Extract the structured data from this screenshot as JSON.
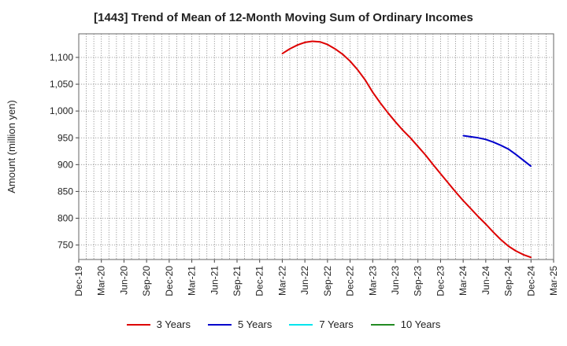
{
  "chart_data": {
    "type": "line",
    "title": "[1443]  Trend of Mean of 12-Month Moving Sum of Ordinary Incomes",
    "xlabel": "",
    "ylabel": "Amount (million yen)",
    "x_tick_labels": [
      "Dec-19",
      "Mar-20",
      "Jun-20",
      "Sep-20",
      "Dec-20",
      "Mar-21",
      "Jun-21",
      "Sep-21",
      "Dec-21",
      "Mar-22",
      "Jun-22",
      "Sep-22",
      "Dec-22",
      "Mar-23",
      "Jun-23",
      "Sep-23",
      "Dec-23",
      "Mar-24",
      "Jun-24",
      "Sep-24",
      "Dec-24",
      "Mar-25"
    ],
    "y_ticks": [
      750,
      800,
      850,
      900,
      950,
      1000,
      1050,
      1100
    ],
    "y_tick_labels": [
      "750",
      "800",
      "850",
      "900",
      "950",
      "1,000",
      "1,050",
      "1,100"
    ],
    "ylim": [
      723,
      1144
    ],
    "grid": true,
    "legend_position": "bottom",
    "series": [
      {
        "name": "3 Years",
        "color": "#dd0000",
        "points": [
          [
            "Mar-22",
            1107
          ],
          [
            "Apr-22",
            1116
          ],
          [
            "May-22",
            1123
          ],
          [
            "Jun-22",
            1128
          ],
          [
            "Jul-22",
            1130
          ],
          [
            "Aug-22",
            1129
          ],
          [
            "Sep-22",
            1124
          ],
          [
            "Oct-22",
            1116
          ],
          [
            "Nov-22",
            1106
          ],
          [
            "Dec-22",
            1093
          ],
          [
            "Jan-23",
            1077
          ],
          [
            "Feb-23",
            1058
          ],
          [
            "Mar-23",
            1035
          ],
          [
            "Apr-23",
            1015
          ],
          [
            "May-23",
            997
          ],
          [
            "Jun-23",
            980
          ],
          [
            "Jul-23",
            964
          ],
          [
            "Aug-23",
            950
          ],
          [
            "Sep-23",
            934
          ],
          [
            "Oct-23",
            918
          ],
          [
            "Nov-23",
            900
          ],
          [
            "Dec-23",
            883
          ],
          [
            "Jan-24",
            866
          ],
          [
            "Feb-24",
            849
          ],
          [
            "Mar-24",
            833
          ],
          [
            "Apr-24",
            818
          ],
          [
            "May-24",
            803
          ],
          [
            "Jun-24",
            789
          ],
          [
            "Jul-24",
            774
          ],
          [
            "Aug-24",
            760
          ],
          [
            "Sep-24",
            748
          ],
          [
            "Oct-24",
            739
          ],
          [
            "Nov-24",
            732
          ],
          [
            "Dec-24",
            727
          ]
        ]
      },
      {
        "name": "5 Years",
        "color": "#0000cc",
        "points": [
          [
            "Mar-24",
            954
          ],
          [
            "Apr-24",
            952
          ],
          [
            "May-24",
            950
          ],
          [
            "Jun-24",
            947
          ],
          [
            "Jul-24",
            942
          ],
          [
            "Aug-24",
            936
          ],
          [
            "Sep-24",
            929
          ],
          [
            "Oct-24",
            919
          ],
          [
            "Nov-24",
            908
          ],
          [
            "Dec-24",
            897
          ]
        ]
      },
      {
        "name": "7 Years",
        "color": "#00e5ee",
        "points": []
      },
      {
        "name": "10 Years",
        "color": "#228b22",
        "points": []
      }
    ]
  }
}
